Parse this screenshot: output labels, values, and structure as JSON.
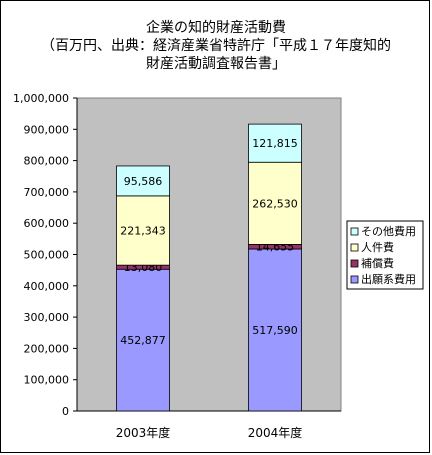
{
  "chart_data": {
    "type": "bar",
    "stacked": true,
    "title": "企業の知的財産活動費",
    "subtitle_lines": [
      "（百万円、出典：経済産業省特許庁「平成１７年度知的",
      "財産活動調査報告書」"
    ],
    "categories": [
      "2003年度",
      "2004年度"
    ],
    "series": [
      {
        "name": "出願系費用",
        "values": [
          452877,
          517590
        ],
        "color": "#9999ff",
        "labels": [
          "452,877",
          "517,590"
        ]
      },
      {
        "name": "補償費",
        "values": [
          13080,
          14655
        ],
        "color": "#993366",
        "labels": [
          "13,080",
          "14,655"
        ]
      },
      {
        "name": "人件費",
        "values": [
          221343,
          262530
        ],
        "color": "#ffffcc",
        "labels": [
          "221,343",
          "262,530"
        ]
      },
      {
        "name": "その他費用",
        "values": [
          95586,
          121815
        ],
        "color": "#ccffff",
        "labels": [
          "95,586",
          "121,815"
        ]
      }
    ],
    "ylim": [
      0,
      1000000
    ],
    "yticks": [
      "0",
      "100,000",
      "200,000",
      "300,000",
      "400,000",
      "500,000",
      "600,000",
      "700,000",
      "800,000",
      "900,000",
      "1,000,000"
    ],
    "plot_background": "#c0c0c0",
    "legend_placement": "right"
  }
}
